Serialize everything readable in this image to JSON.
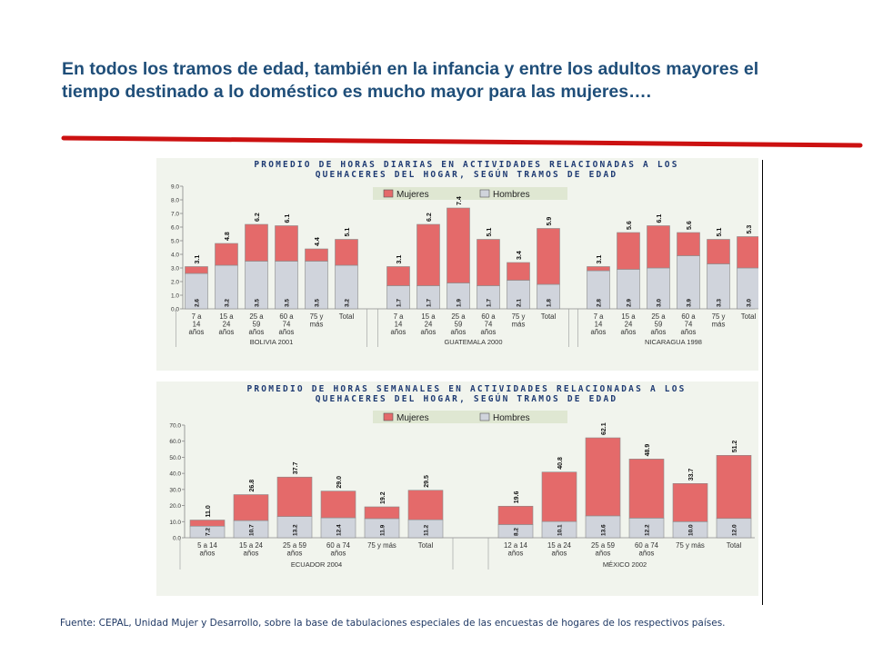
{
  "title": "En todos los tramos de edad, también en la infancia y entre los adultos mayores el tiempo destinado a lo doméstico es mucho mayor para las mujeres….",
  "source": "Fuente: CEPAL, Unidad Mujer y Desarrollo, sobre la base de tabulaciones especiales de las encuestas de hogares de los respectivos países.",
  "colors": {
    "title": "#1f4e79",
    "rule": "#cc1111",
    "mujeres": "#e46a6a",
    "hombres": "#d0d4dc",
    "panel_bg": "#f1f4ed",
    "chart_title": "#1f3b73",
    "axis_text": "#333333"
  },
  "chart_data": [
    {
      "type": "bar",
      "stacked": true,
      "title": "PROMEDIO DE HORAS DIARIAS EN ACTIVIDADES RELACIONADAS A LOS QUEHACERES DEL HOGAR, SEGÚN TRAMOS DE EDAD",
      "title_lines": [
        "PROMEDIO DE HORAS DIARIAS EN ACTIVIDADES RELACIONADAS A LOS",
        "QUEHACERES DEL HOGAR, SEGÚN TRAMOS DE EDAD"
      ],
      "legend": [
        "Mujeres",
        "Hombres"
      ],
      "legend_position": "top-right",
      "ylim": [
        0,
        9
      ],
      "yticks": [
        "0.0",
        "1.0",
        "2.0",
        "3.0",
        "4.0",
        "5.0",
        "6.0",
        "7.0",
        "8.0",
        "9.0"
      ],
      "groups": [
        {
          "country": "BOLIVIA 2001",
          "categories": [
            "7 a 14 años",
            "15 a 24 años",
            "25 a 59 años",
            "60 a 74 años",
            "75 y más",
            "Total"
          ],
          "totals": [
            "3.1",
            "4.8",
            "6.2",
            "6.1",
            "4.4",
            "5.1"
          ],
          "hombres": [
            "2.6",
            "3.2",
            "3.5",
            "3.5",
            "3.5",
            "3.2"
          ]
        },
        {
          "country": "GUATEMALA 2000",
          "categories": [
            "7 a 14 años",
            "15 a 24 años",
            "25 a 59 años",
            "60 a 74 años",
            "75 y más",
            "Total"
          ],
          "totals": [
            "3.1",
            "6.2",
            "7.4",
            "5.1",
            "3.4",
            "5.9"
          ],
          "hombres": [
            "1.7",
            "1.7",
            "1.9",
            "1.7",
            "2.1",
            "1.8"
          ]
        },
        {
          "country": "NICARAGUA 1998",
          "categories": [
            "7 a 14 años",
            "15 a 24 años",
            "25 a 59 años",
            "60 a 74 años",
            "75 y más",
            "Total"
          ],
          "totals": [
            "3.1",
            "5.6",
            "6.1",
            "5.6",
            "5.1",
            "5.3"
          ],
          "hombres": [
            "2.8",
            "2.9",
            "3.0",
            "3.9",
            "3.3",
            "3.0"
          ]
        }
      ]
    },
    {
      "type": "bar",
      "stacked": true,
      "title": "PROMEDIO DE HORAS SEMANALES EN ACTIVIDADES RELACIONADAS A LOS QUEHACERES DEL HOGAR, SEGÚN TRAMOS DE EDAD",
      "title_lines": [
        "PROMEDIO DE HORAS SEMANALES EN ACTIVIDADES RELACIONADAS A LOS",
        "QUEHACERES DEL HOGAR, SEGÚN TRAMOS DE EDAD"
      ],
      "legend": [
        "Mujeres",
        "Hombres"
      ],
      "legend_position": "top-right",
      "ylim": [
        0,
        70
      ],
      "yticks": [
        "0.0",
        "10.0",
        "20.0",
        "30.0",
        "40.0",
        "50.0",
        "60.0",
        "70.0"
      ],
      "groups": [
        {
          "country": "ECUADOR 2004",
          "categories": [
            "5 a 14 años",
            "15 a 24 años",
            "25 a 59 años",
            "60 a 74 años",
            "75 y más",
            "Total"
          ],
          "totals": [
            "11.0",
            "26.8",
            "37.7",
            "29.0",
            "19.2",
            "29.5"
          ],
          "hombres": [
            "7.2",
            "10.7",
            "13.2",
            "12.4",
            "11.9",
            "11.2"
          ]
        },
        {
          "country": "MÉXICO 2002",
          "categories": [
            "12 a 14 años",
            "15 a 24 años",
            "25 a 59 años",
            "60 a 74 años",
            "75 y más",
            "Total"
          ],
          "totals": [
            "19.6",
            "40.8",
            "62.1",
            "48.9",
            "33.7",
            "51.2"
          ],
          "hombres": [
            "8.2",
            "10.1",
            "13.6",
            "12.2",
            "10.0",
            "12.0"
          ]
        }
      ]
    }
  ]
}
